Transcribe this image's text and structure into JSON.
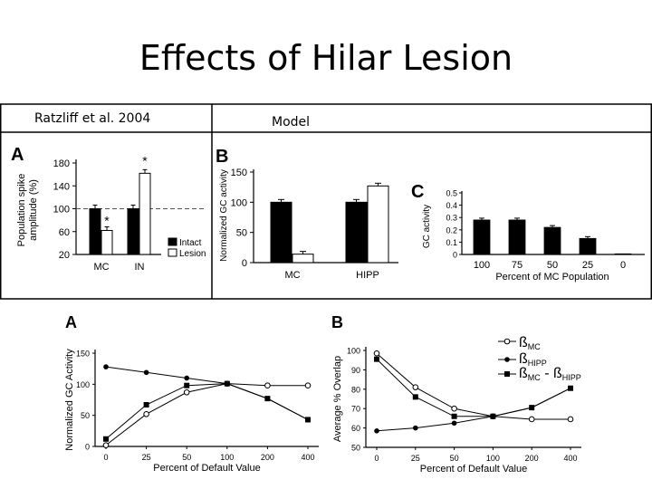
{
  "slide": {
    "title": "Effects of Hilar Lesion",
    "left_header": "Ratzliff et al. 2004",
    "right_header": "Model"
  },
  "chart_data": [
    {
      "panel": "A",
      "type": "bar",
      "ylabel": "Population spike amplitude (%)",
      "categories": [
        "MC",
        "IN"
      ],
      "ylim": [
        20,
        180
      ],
      "yticks": [
        20,
        60,
        100,
        140,
        180
      ],
      "reference_line": 100,
      "series": [
        {
          "name": "Intact",
          "values": [
            100,
            100
          ],
          "color": "#000000"
        },
        {
          "name": "Lesion",
          "values": [
            62,
            162
          ],
          "color": "#ffffff"
        }
      ],
      "annotations": [
        "*",
        "*"
      ],
      "legend": "bottom-right"
    },
    {
      "panel": "B",
      "type": "bar",
      "ylabel": "Normalized GC activity",
      "categories": [
        "MC",
        "HIPP"
      ],
      "ylim": [
        0,
        150
      ],
      "yticks": [
        0,
        50,
        100,
        150
      ],
      "series": [
        {
          "name": "Intact",
          "values": [
            100,
            100
          ],
          "color": "#000000"
        },
        {
          "name": "Lesion",
          "values": [
            14,
            127
          ],
          "color": "#ffffff"
        }
      ]
    },
    {
      "panel": "C",
      "type": "bar",
      "ylabel": "GC activity",
      "xlabel": "Percent of MC Population",
      "categories": [
        "100",
        "75",
        "50",
        "25",
        "0"
      ],
      "values": [
        0.28,
        0.28,
        0.22,
        0.13,
        0.005
      ],
      "ylim": [
        0,
        0.5
      ],
      "yticks": [
        "0",
        "0.1",
        "0.2",
        "0.3",
        "0.4",
        "0.5"
      ]
    },
    {
      "panel": "A",
      "type": "line",
      "ylabel": "Normalized GC Activity",
      "xlabel": "Percent of Default Value",
      "x": [
        "0",
        "25",
        "50",
        "100",
        "200",
        "400"
      ],
      "ylim": [
        0,
        150
      ],
      "yticks": [
        0,
        50,
        100,
        150
      ],
      "series": [
        {
          "name": "open circles",
          "marker": "open-circle",
          "values": [
            2,
            52,
            87,
            101,
            98,
            98
          ]
        },
        {
          "name": "filled circles",
          "marker": "filled-circle",
          "values": [
            128,
            119,
            110,
            101,
            77,
            43
          ]
        },
        {
          "name": "filled squares",
          "marker": "filled-square",
          "values": [
            12,
            67,
            98,
            101,
            77,
            43
          ]
        }
      ]
    },
    {
      "panel": "B",
      "type": "line",
      "ylabel": "Average % Overlap",
      "xlabel": "Percent of Default Value",
      "x": [
        "0",
        "25",
        "50",
        "100",
        "200",
        "400"
      ],
      "ylim": [
        50,
        100
      ],
      "yticks": [
        50,
        60,
        70,
        80,
        90,
        100
      ],
      "legend_entries": [
        "ßMC",
        "ßHIPP",
        "ßMC - ßHIPP"
      ],
      "legend_subs": [
        "MC",
        "HIPP",
        "MC",
        "HIPP"
      ],
      "legend_beta": "ß",
      "legend_dash": " - ",
      "series": [
        {
          "name": "ßMC",
          "marker": "open-circle",
          "values": [
            98.5,
            81,
            70,
            66,
            64.5,
            64.5
          ]
        },
        {
          "name": "ßHIPP",
          "marker": "filled-circle",
          "values": [
            58.5,
            60,
            62.5,
            66,
            70.5,
            80.5
          ]
        },
        {
          "name": "ßMC - ßHIPP",
          "marker": "filled-square",
          "values": [
            95.5,
            76,
            66,
            66,
            70.5,
            80.5
          ]
        }
      ]
    }
  ]
}
